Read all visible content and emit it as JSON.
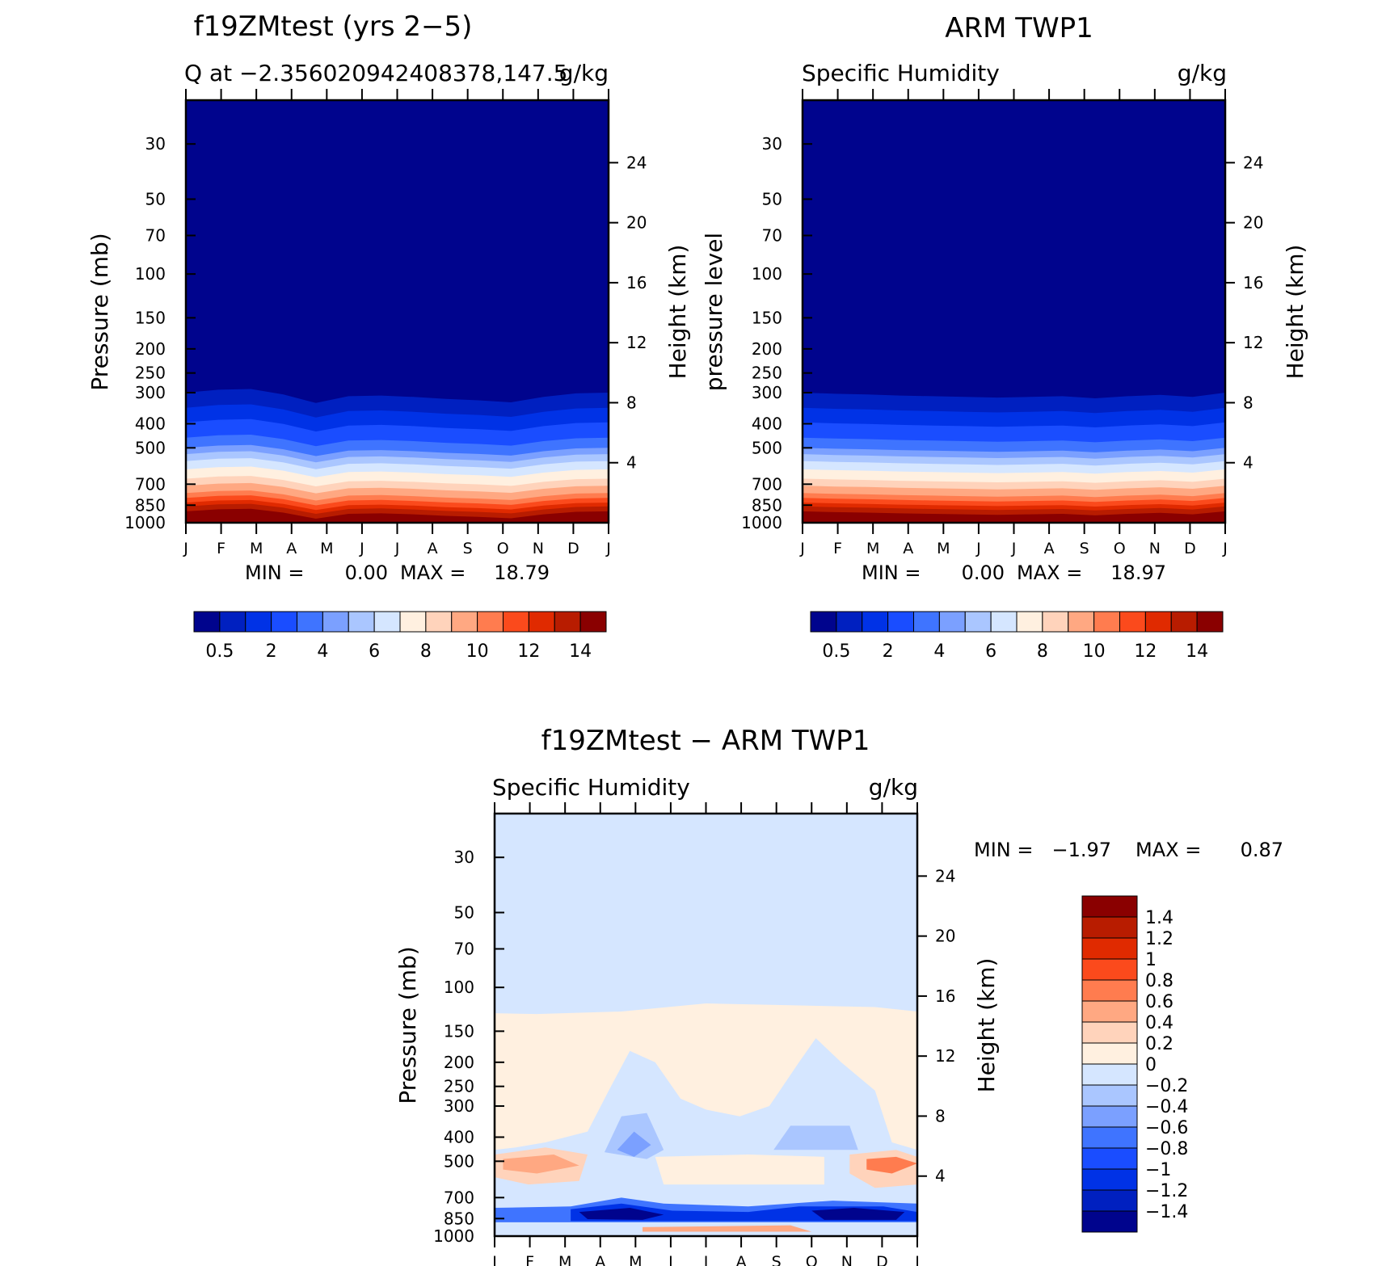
{
  "colors": {
    "abs_palette": [
      "#00048d",
      "#0020c0",
      "#0032e6",
      "#1a4dff",
      "#3f74ff",
      "#7ba0ff",
      "#aac6ff",
      "#d5e6ff",
      "#fff0e0",
      "#ffd3bb",
      "#ffa882",
      "#ff7c4f",
      "#fb4a1c",
      "#e02a00",
      "#b81c00",
      "#8a0000"
    ],
    "diff_palette": [
      "#00048d",
      "#0020c0",
      "#0032e6",
      "#1a4dff",
      "#3f74ff",
      "#7ba0ff",
      "#aac6ff",
      "#d5e6ff",
      "#fff0e0",
      "#ffd3bb",
      "#ffa882",
      "#ff7c4f",
      "#fb4a1c",
      "#e02a00",
      "#b81c00",
      "#8a0000"
    ]
  },
  "chart_data": [
    {
      "type": "heatmap",
      "title": "f19ZMtest (yrs 2-5)",
      "left_label": "Q at -2.356020942408378,147.5",
      "right_label": "g/kg",
      "ylabel": "Pressure (mb)",
      "ylabel_right": "Height (km)",
      "yticks": [
        "30",
        "50",
        "70",
        "100",
        "150",
        "200",
        "250",
        "300",
        "400",
        "500",
        "700",
        "850",
        "1000"
      ],
      "yticks_right": [
        "24",
        "20",
        "16",
        "12",
        "8",
        "4"
      ],
      "months": [
        "J",
        "F",
        "M",
        "A",
        "M",
        "J",
        "J",
        "A",
        "S",
        "O",
        "N",
        "D",
        "J"
      ],
      "min_max": [
        "MIN =",
        "0.00",
        "MAX =",
        "18.79"
      ],
      "colorbar_labels": [
        "0.5",
        "2",
        "4",
        "6",
        "8",
        "10",
        "12",
        "14"
      ]
    },
    {
      "type": "heatmap",
      "title": "ARM TWP1",
      "left_label": "Specific Humidity",
      "right_label": "g/kg",
      "ylabel": "pressure level",
      "ylabel_right": "Height (km)",
      "yticks": [
        "30",
        "50",
        "70",
        "100",
        "150",
        "200",
        "250",
        "300",
        "400",
        "500",
        "700",
        "850",
        "1000"
      ],
      "yticks_right": [
        "24",
        "20",
        "16",
        "12",
        "8",
        "4"
      ],
      "months": [
        "J",
        "F",
        "M",
        "A",
        "M",
        "J",
        "J",
        "A",
        "S",
        "O",
        "N",
        "D",
        "J"
      ],
      "min_max": [
        "MIN =",
        "0.00",
        "MAX =",
        "18.97"
      ],
      "colorbar_labels": [
        "0.5",
        "2",
        "4",
        "6",
        "8",
        "10",
        "12",
        "14"
      ]
    },
    {
      "type": "heatmap",
      "title": "f19ZMtest - ARM TWP1",
      "left_label": "Specific Humidity",
      "right_label": "g/kg",
      "ylabel": "Pressure (mb)",
      "ylabel_right": "Height (km)",
      "yticks": [
        "30",
        "50",
        "70",
        "100",
        "150",
        "200",
        "250",
        "300",
        "400",
        "500",
        "700",
        "850",
        "1000"
      ],
      "yticks_right": [
        "24",
        "20",
        "16",
        "12",
        "8",
        "4"
      ],
      "months": [
        "J",
        "F",
        "M",
        "A",
        "M",
        "J",
        "J",
        "A",
        "S",
        "O",
        "N",
        "D",
        "J"
      ],
      "min_max": [
        "MIN =",
        "-1.97",
        "MAX =",
        "0.87"
      ],
      "colorbar_labels": [
        "1.4",
        "1.2",
        "1",
        "0.8",
        "0.6",
        "0.4",
        "0.2",
        "0",
        "-0.2",
        "-0.4",
        "-0.6",
        "-0.8",
        "-1",
        "-1.2",
        "-1.4"
      ]
    }
  ]
}
